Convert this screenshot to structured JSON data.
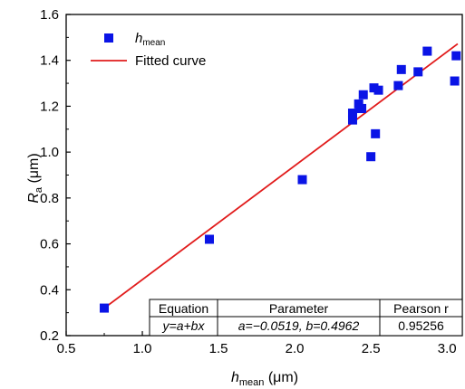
{
  "chart_data": {
    "type": "scatter",
    "title": "",
    "xlabel": {
      "main": "h",
      "sub": "mean",
      "unit": " (μm)"
    },
    "ylabel": {
      "main": "R",
      "sub": "a",
      "unit": " (μm)"
    },
    "xlim": [
      0.5,
      3.1
    ],
    "ylim": [
      0.2,
      1.6
    ],
    "x_ticks": [
      0.5,
      1.0,
      1.5,
      2.0,
      2.5,
      3.0
    ],
    "x_tick_labels": [
      "0.5",
      "1.0",
      "1.5",
      "2.0",
      "2.5",
      "3.0"
    ],
    "y_ticks": [
      0.2,
      0.4,
      0.6,
      0.8,
      1.0,
      1.2,
      1.4,
      1.6
    ],
    "y_tick_labels": [
      "0.2",
      "0.4",
      "0.6",
      "0.8",
      "1.0",
      "1.2",
      "1.4",
      "1.6"
    ],
    "grid": false,
    "legend_position": "top-left",
    "series": [
      {
        "name": "h_mean",
        "legend_label": {
          "main": "h",
          "sub": "mean"
        },
        "kind": "scatter",
        "marker": "square",
        "color": "#0a14e6",
        "x": [
          0.75,
          1.44,
          2.05,
          2.38,
          2.38,
          2.42,
          2.43,
          2.45,
          2.44,
          2.5,
          2.52,
          2.53,
          2.55,
          2.68,
          2.7,
          2.81,
          2.87,
          3.05,
          3.06
        ],
        "y": [
          0.32,
          0.62,
          0.88,
          1.14,
          1.17,
          1.21,
          1.19,
          1.25,
          1.19,
          0.98,
          1.28,
          1.08,
          1.27,
          1.29,
          1.36,
          1.35,
          1.44,
          1.31,
          1.42
        ]
      },
      {
        "name": "Fitted curve",
        "kind": "line",
        "color": "#e11b1b",
        "x": [
          0.75,
          3.07
        ],
        "y": [
          0.32,
          1.472
        ]
      }
    ],
    "fit_table": {
      "headers": [
        "Equation",
        "Parameter",
        "Pearson r"
      ],
      "row": [
        "y=a+bx",
        "a=−0.0519, b=0.4962",
        "0.95256"
      ]
    }
  }
}
